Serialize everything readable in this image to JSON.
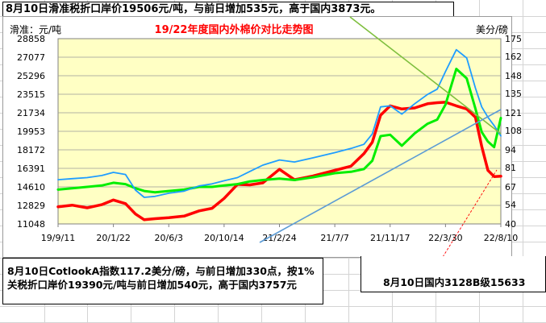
{
  "headline": "8月10日滑准税折口岸价19506元/吨，与前日增加535元，高于国内3873元。",
  "note_left": "8月10日CotlookA指数117.2美分/磅，与前日增加330点，按1%关税折口岸价19390元/吨与前日增加540元，高于国内3757元",
  "note_right": "8月10日国内3128B级15633",
  "colors": {
    "plot_background": "#ffffc4",
    "red": "#ff0000",
    "green": "#00ee00",
    "blue": "#1f9dff",
    "title": "#ff0000",
    "trend_green": "#7fbf3f",
    "trend_blue": "#5b9bd5"
  },
  "chart_data": {
    "type": "line",
    "title": "19/22年度国内外棉价对比走势图",
    "ylabel_left": "滑准：元/吨",
    "ylabel_right": "美分/磅",
    "x_ticks": [
      "19/9/11",
      "20/1/22",
      "20/6/3",
      "20/10/14",
      "21/2/24",
      "21/7/7",
      "21/11/17",
      "22/3/30",
      "22/8/10"
    ],
    "ylim_left": [
      11048,
      28858
    ],
    "y_ticks_left": [
      11048,
      12829,
      14610,
      16391,
      18172,
      19953,
      21734,
      23515,
      25296,
      27077,
      28858
    ],
    "ylim_right": [
      40,
      175
    ],
    "y_ticks_right": [
      40,
      54,
      67,
      81,
      94,
      108,
      121,
      135,
      148,
      162,
      175
    ],
    "grid": true,
    "legend": "none",
    "series": [
      {
        "axis": "left",
        "color": "red",
        "x": [
          "2019-09-11",
          "2019-10-15",
          "2019-11-20",
          "2019-12-25",
          "2020-01-22",
          "2020-02-20",
          "2020-03-15",
          "2020-04-05",
          "2020-05-01",
          "2020-06-03",
          "2020-07-10",
          "2020-08-15",
          "2020-09-15",
          "2020-10-14",
          "2020-11-15",
          "2020-12-15",
          "2021-01-15",
          "2021-02-24",
          "2021-04-01",
          "2021-05-15",
          "2021-07-07",
          "2021-08-15",
          "2021-09-15",
          "2021-10-05",
          "2021-10-25",
          "2021-11-17",
          "2021-12-15",
          "2022-01-15",
          "2022-02-15",
          "2022-03-10",
          "2022-03-30",
          "2022-04-25",
          "2022-05-20",
          "2022-06-10",
          "2022-06-25",
          "2022-07-10",
          "2022-07-25",
          "2022-08-10"
        ],
        "y": [
          12700,
          12850,
          12600,
          12900,
          13350,
          13000,
          12000,
          11450,
          11550,
          11650,
          11800,
          12300,
          12550,
          13500,
          14850,
          14800,
          15000,
          16300,
          15300,
          15650,
          16200,
          16600,
          17800,
          18900,
          21500,
          22400,
          22100,
          22200,
          22600,
          22700,
          22750,
          22400,
          22100,
          21300,
          18500,
          16200,
          15600,
          15633
        ]
      },
      {
        "axis": "right",
        "color": "green",
        "x": [
          "2019-09-11",
          "2019-10-15",
          "2019-11-20",
          "2019-12-25",
          "2020-01-22",
          "2020-02-20",
          "2020-03-15",
          "2020-04-05",
          "2020-05-01",
          "2020-06-03",
          "2020-07-10",
          "2020-08-15",
          "2020-09-15",
          "2020-10-14",
          "2020-11-15",
          "2020-12-15",
          "2021-01-15",
          "2021-02-24",
          "2021-04-01",
          "2021-05-15",
          "2021-07-07",
          "2021-08-15",
          "2021-09-15",
          "2021-10-05",
          "2021-10-25",
          "2021-11-17",
          "2021-12-15",
          "2022-01-15",
          "2022-02-15",
          "2022-03-10",
          "2022-03-30",
          "2022-04-25",
          "2022-05-20",
          "2022-06-10",
          "2022-06-25",
          "2022-07-10",
          "2022-07-25",
          "2022-08-10"
        ],
        "y": [
          65,
          66,
          67,
          68,
          70,
          69,
          66,
          64,
          63,
          64,
          65,
          67,
          67,
          68,
          69,
          71,
          72,
          73,
          72,
          74,
          77,
          78,
          80,
          86,
          104,
          105,
          97,
          106,
          113,
          116,
          127,
          153,
          146,
          124,
          107,
          100,
          96,
          117.2
        ]
      },
      {
        "axis": "left",
        "color": "blue",
        "x": [
          "2019-09-11",
          "2019-10-15",
          "2019-11-20",
          "2019-12-25",
          "2020-01-22",
          "2020-02-20",
          "2020-03-15",
          "2020-04-05",
          "2020-05-01",
          "2020-06-03",
          "2020-07-10",
          "2020-08-15",
          "2020-09-15",
          "2020-10-14",
          "2020-11-15",
          "2020-12-15",
          "2021-01-15",
          "2021-02-24",
          "2021-04-01",
          "2021-05-15",
          "2021-07-07",
          "2021-08-15",
          "2021-09-15",
          "2021-10-05",
          "2021-10-25",
          "2021-11-17",
          "2021-12-15",
          "2022-01-15",
          "2022-02-15",
          "2022-03-10",
          "2022-03-30",
          "2022-04-25",
          "2022-05-20",
          "2022-06-10",
          "2022-06-25",
          "2022-07-10",
          "2022-07-25",
          "2022-08-10"
        ],
        "y": [
          15300,
          15400,
          15500,
          15700,
          16000,
          15800,
          14300,
          13600,
          13700,
          14000,
          14200,
          14700,
          14900,
          15200,
          15500,
          16100,
          16700,
          17200,
          17000,
          17400,
          17900,
          18300,
          18700,
          19700,
          22300,
          22400,
          21600,
          22600,
          23500,
          24000,
          25700,
          27800,
          27000,
          24100,
          22300,
          21300,
          20500,
          19506
        ]
      }
    ],
    "annotations": [
      {
        "type": "trend_line",
        "color": "trend_green"
      },
      {
        "type": "trend_line",
        "color": "trend_blue"
      },
      {
        "type": "dashed_line",
        "color": "red"
      }
    ]
  }
}
